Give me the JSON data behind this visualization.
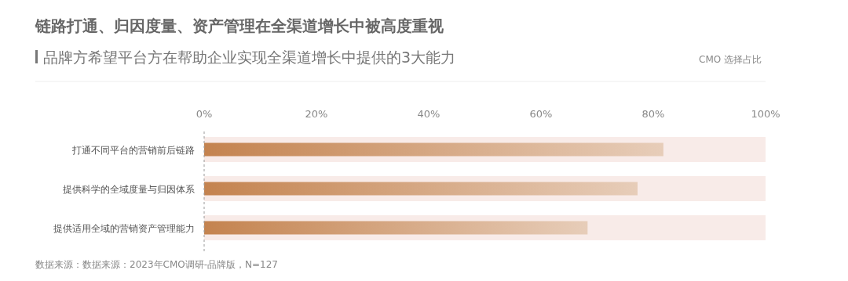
{
  "chart_data": {
    "type": "bar",
    "orientation": "horizontal",
    "title": "链路打通、归因度量、资产管理在全渠道增长中被高度重视",
    "subtitle": "品牌方希望平台方在帮助企业实现全渠道增长中提供的3大能力",
    "categories": [
      "打通不同平台的营销前后链路",
      "提供科学的全域度量与归因体系",
      "提供适用全域的营销资产管理能力"
    ],
    "series": [
      {
        "color": "#f8ebe8",
        "values": [
          100,
          100,
          100
        ]
      },
      {
        "color": "#c4834f",
        "values": [
          81.8,
          77.2,
          68.3
        ]
      }
    ],
    "xlim": [
      0,
      100
    ],
    "xticks": [
      {
        "value": 0,
        "label": "0%"
      },
      {
        "value": 20,
        "label": "20%"
      },
      {
        "value": 40,
        "label": "40%"
      },
      {
        "value": 60,
        "label": "60%"
      },
      {
        "value": 80,
        "label": "80%"
      },
      {
        "value": 100,
        "label": "100%"
      }
    ],
    "grid": false,
    "legend": false,
    "annotations": [
      "CMO 选择占比",
      "数据来源：数据来源：2023年CMO调研-品牌版，N=127"
    ]
  }
}
